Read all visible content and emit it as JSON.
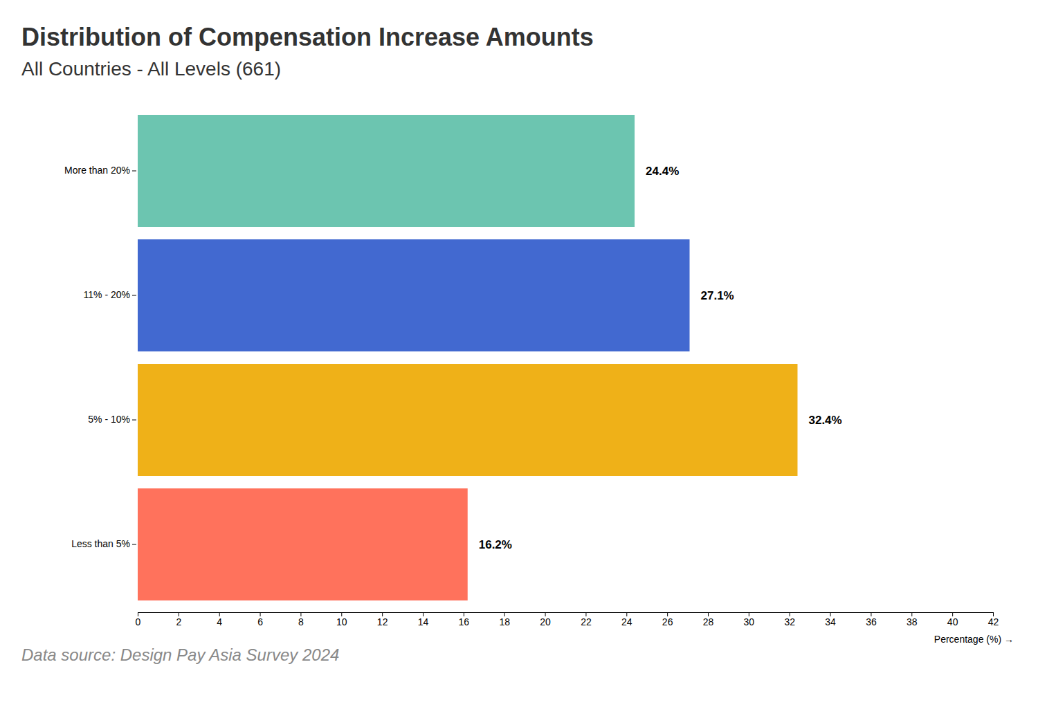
{
  "chart_data": {
    "type": "bar",
    "orientation": "horizontal",
    "title": "Distribution of Compensation Increase Amounts",
    "subtitle": "All Countries - All Levels (661)",
    "source": "Data source: Design Pay Asia Survey 2024",
    "x_label": "Percentage (%) →",
    "categories": [
      "More than 20%",
      "11% - 20%",
      "5% - 10%",
      "Less than 5%"
    ],
    "values": [
      24.4,
      27.1,
      32.4,
      16.2
    ],
    "value_labels": [
      "24.4%",
      "27.1%",
      "32.4%",
      "16.2%"
    ],
    "colors": [
      "#6cc5b0",
      "#4269d0",
      "#efb118",
      "#ff725c"
    ],
    "xlim": [
      0,
      42
    ],
    "xticks": [
      0,
      2,
      4,
      6,
      8,
      10,
      12,
      14,
      16,
      18,
      20,
      22,
      24,
      26,
      28,
      30,
      32,
      34,
      36,
      38,
      40,
      42
    ],
    "data_labels": true,
    "grid": false
  }
}
